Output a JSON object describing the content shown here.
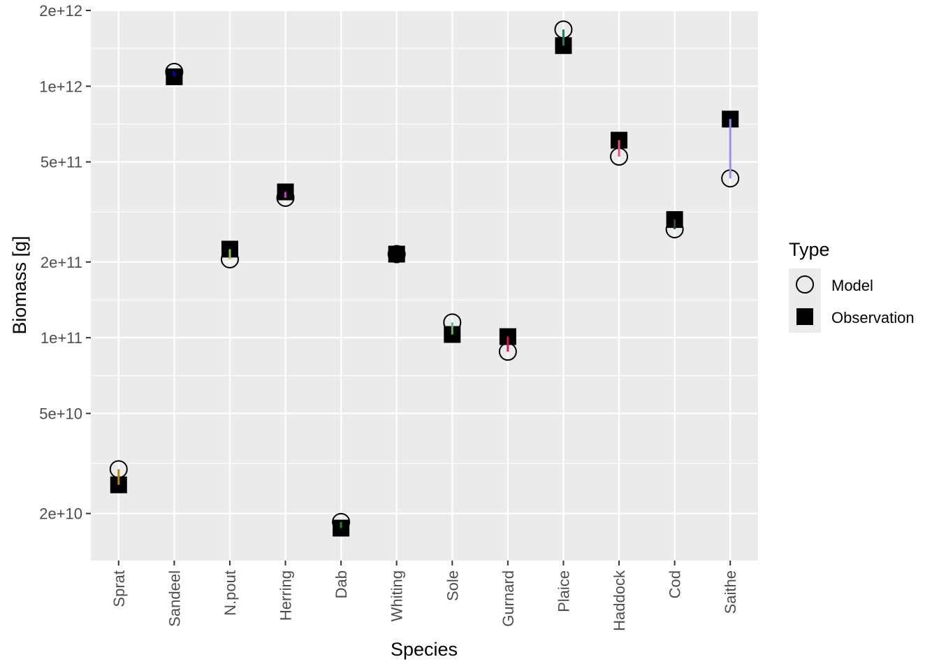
{
  "chart_data": {
    "type": "scatter",
    "xlabel": "Species",
    "ylabel": "Biomass [g]",
    "y_scale": "log10",
    "ylim": [
      13000000000,
      2000000000000
    ],
    "y_ticks": [
      {
        "value": 20000000000,
        "label": "2e+10"
      },
      {
        "value": 50000000000,
        "label": "5e+10"
      },
      {
        "value": 100000000000,
        "label": "1e+11"
      },
      {
        "value": 200000000000,
        "label": "2e+11"
      },
      {
        "value": 500000000000,
        "label": "5e+11"
      },
      {
        "value": 1000000000000,
        "label": "1e+12"
      },
      {
        "value": 2000000000000,
        "label": "2e+12"
      }
    ],
    "grid": true,
    "categories": [
      "Sprat",
      "Sandeel",
      "N.pout",
      "Herring",
      "Dab",
      "Whiting",
      "Sole",
      "Gurnard",
      "Plaice",
      "Haddock",
      "Cod",
      "Saithe"
    ],
    "series": [
      {
        "name": "Model",
        "marker": "open-circle",
        "values": [
          30000000000,
          1140000000000,
          205000000000,
          360000000000,
          18500000000,
          215000000000,
          115000000000,
          88000000000,
          1680000000000,
          525000000000,
          270000000000,
          430000000000
        ]
      },
      {
        "name": "Observation",
        "marker": "filled-square",
        "values": [
          26000000000,
          1090000000000,
          225000000000,
          380000000000,
          17500000000,
          215000000000,
          103000000000,
          101000000000,
          1450000000000,
          610000000000,
          295000000000,
          740000000000
        ]
      }
    ],
    "segment_colors": [
      "#B8860B",
      "#0000CD",
      "#9ACD32",
      "#CC33CC",
      "#2E7D32",
      "#000000",
      "#66BB6A",
      "#E0115F",
      "#1B7F5C",
      "#E75480",
      "#2F4F2F",
      "#9F8FEF"
    ],
    "legend": {
      "title": "Type",
      "position": "right",
      "items": [
        {
          "label": "Model",
          "marker": "open-circle"
        },
        {
          "label": "Observation",
          "marker": "filled-square"
        }
      ]
    },
    "colors": {
      "panel_bg": "#EBEBEB",
      "grid": "#FFFFFF",
      "axis_text": "#4D4D4D",
      "title_text": "#000000"
    }
  }
}
